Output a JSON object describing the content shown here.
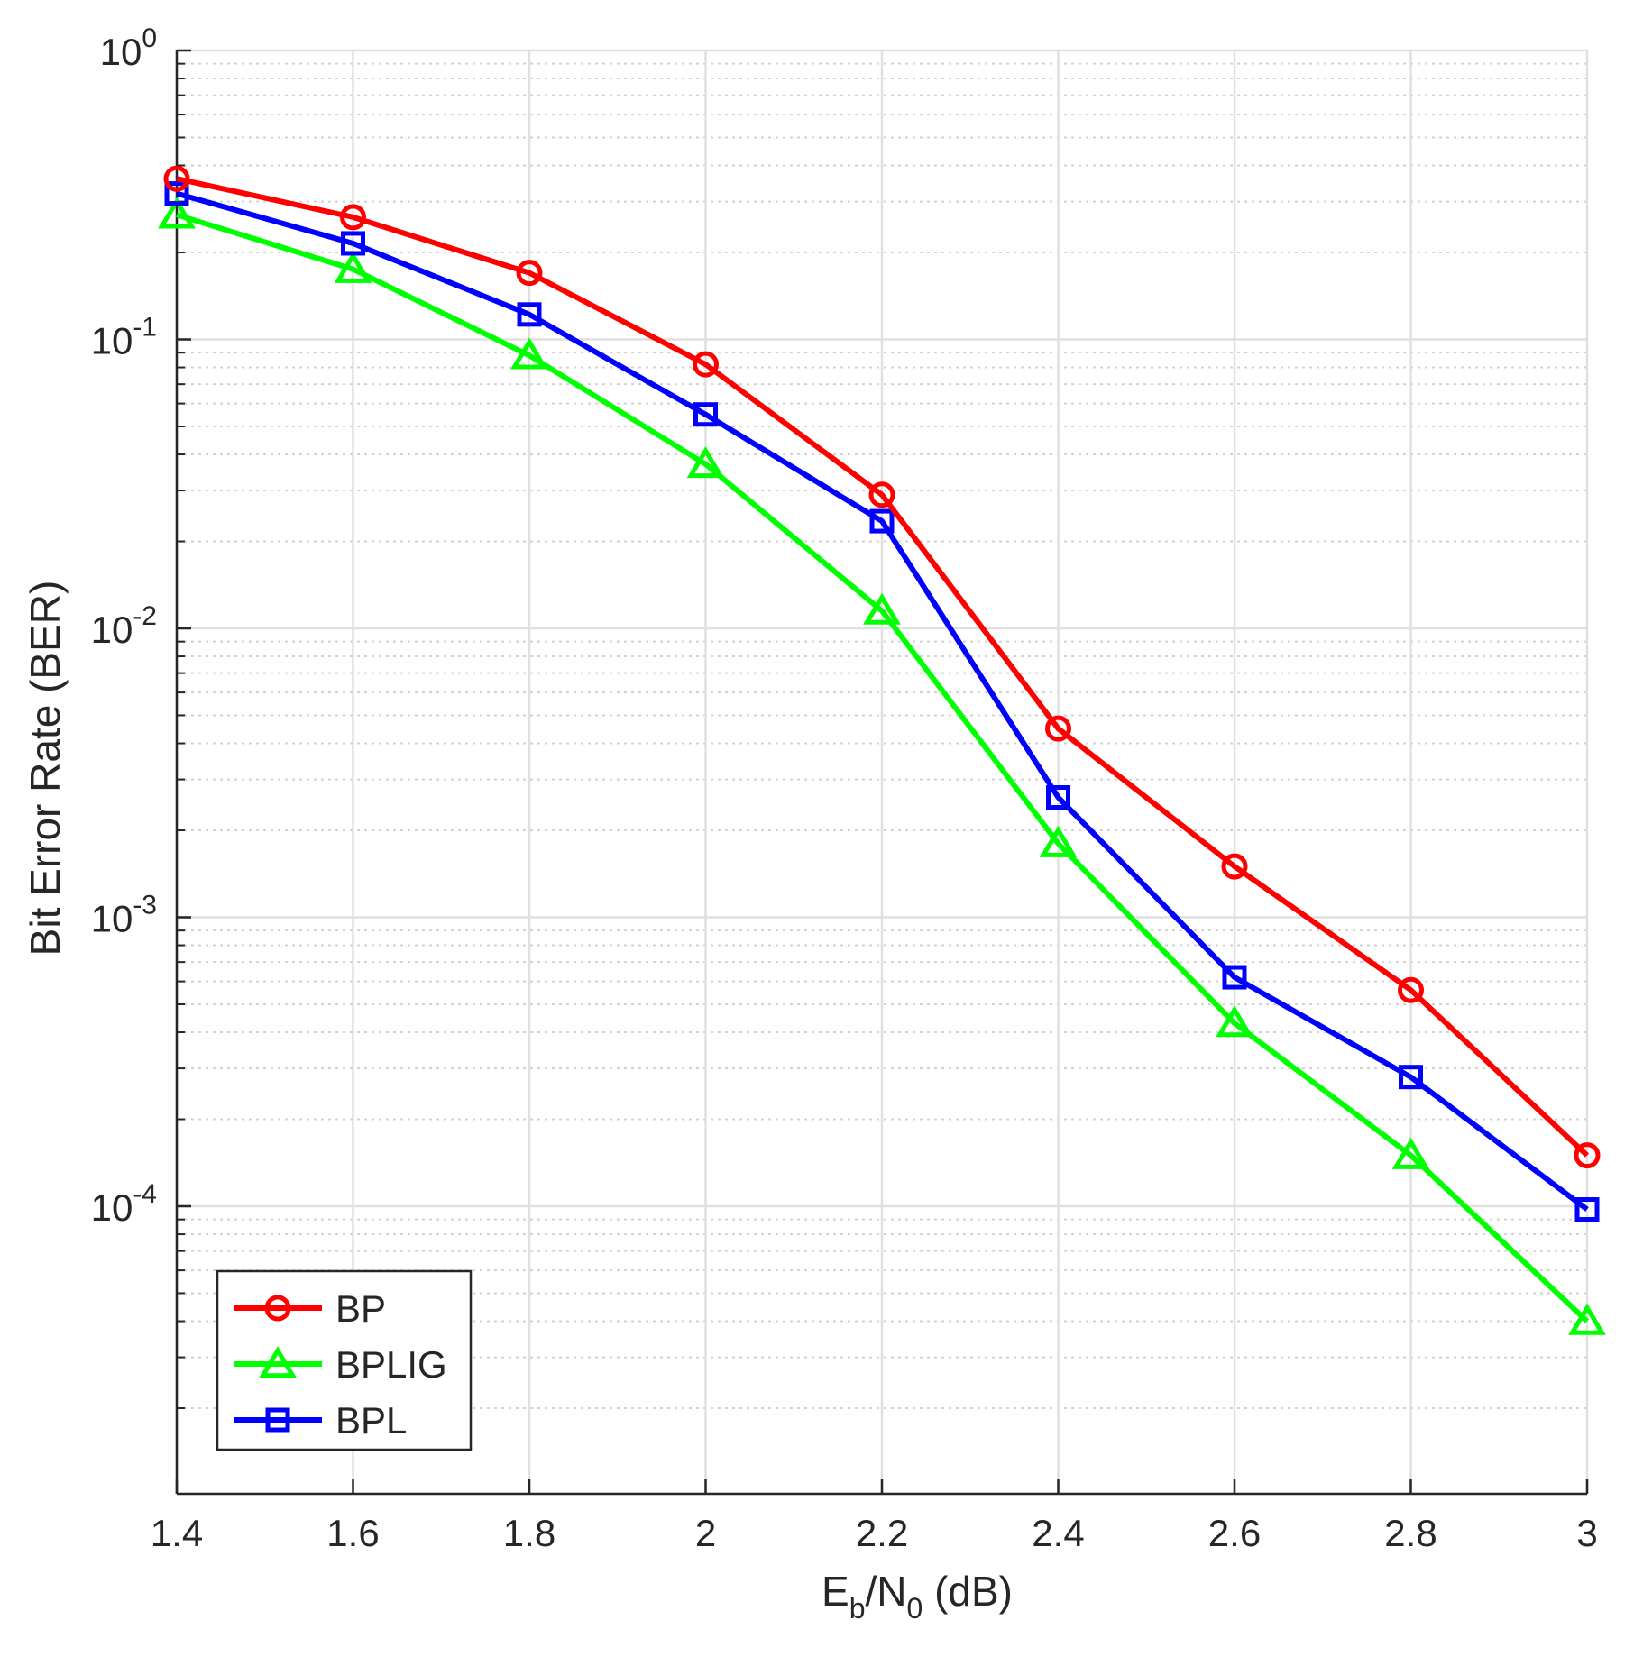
{
  "chart_data": {
    "type": "line",
    "xscale": "linear",
    "yscale": "log",
    "xlabel": {
      "base": "E",
      "sub1": "b",
      "mid": "/N",
      "sub2": "0",
      "tail": " (dB)"
    },
    "ylabel": "Bit Error Rate (BER)",
    "xlim": [
      1.4,
      3
    ],
    "ylim": [
      1e-05,
      1
    ],
    "x_ticks": [
      "1.4",
      "1.6",
      "1.8",
      "2",
      "2.2",
      "2.4",
      "2.6",
      "2.8",
      "3"
    ],
    "y_ticks": [
      {
        "base": "10",
        "exp": "0",
        "value": 1
      },
      {
        "base": "10",
        "exp": "-1",
        "value": 0.1
      },
      {
        "base": "10",
        "exp": "-2",
        "value": 0.01
      },
      {
        "base": "10",
        "exp": "-3",
        "value": 0.001
      },
      {
        "base": "10",
        "exp": "-4",
        "value": 0.0001
      }
    ],
    "grid": true,
    "minor_grid": true,
    "legend_position": "bottom-left",
    "x": [
      1.4,
      1.6,
      1.8,
      2.0,
      2.2,
      2.4,
      2.6,
      2.8,
      3.0
    ],
    "series": [
      {
        "name": "BP",
        "color": "#ff0000",
        "marker": "circle",
        "values": [
          0.36,
          0.265,
          0.17,
          0.082,
          0.029,
          0.0045,
          0.0015,
          0.00056,
          0.00015
        ]
      },
      {
        "name": "BPLIG",
        "color": "#00ff00",
        "marker": "triangle",
        "values": [
          0.27,
          0.175,
          0.088,
          0.037,
          0.0115,
          0.0018,
          0.00043,
          0.00015,
          4e-05
        ]
      },
      {
        "name": "BPL",
        "color": "#0000ff",
        "marker": "square",
        "values": [
          0.32,
          0.215,
          0.122,
          0.055,
          0.0235,
          0.0026,
          0.00062,
          0.00028,
          9.75e-05
        ]
      }
    ]
  }
}
